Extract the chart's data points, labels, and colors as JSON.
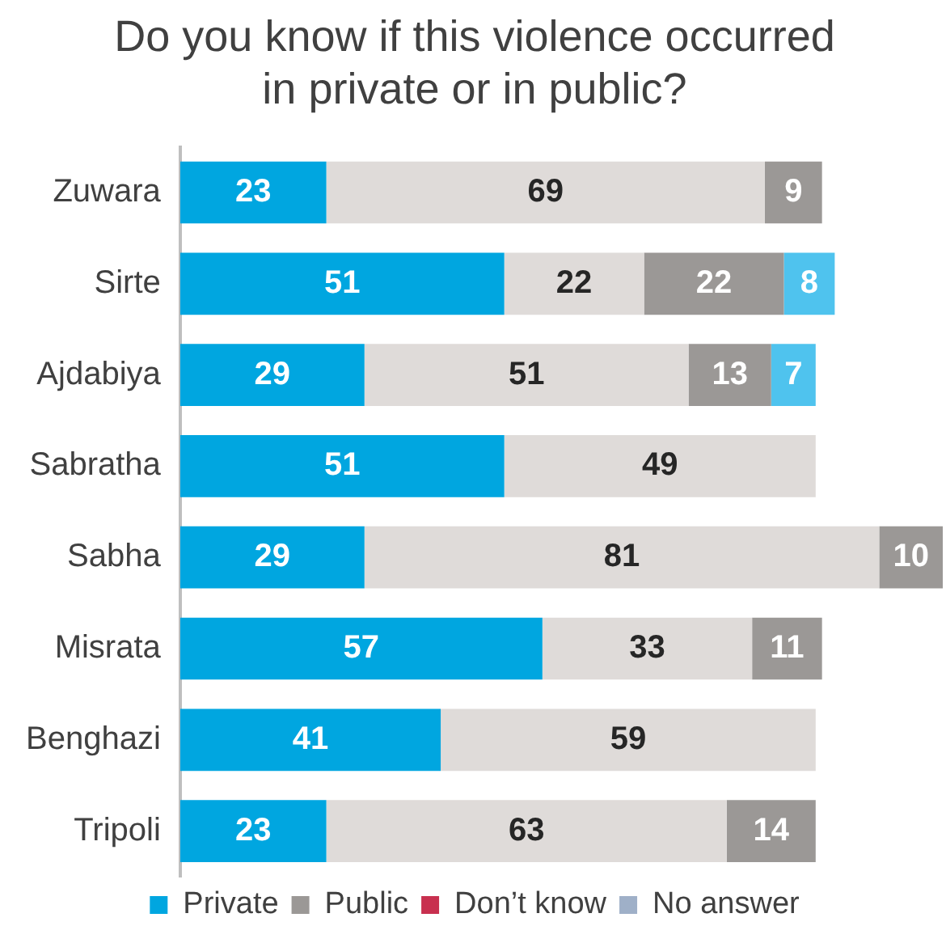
{
  "chart_data": {
    "type": "bar",
    "orientation": "horizontal",
    "stacked": true,
    "title": "Do you know if this violence occurred in private or in public?",
    "categories": [
      "Zuwara",
      "Sirte",
      "Ajdabiya",
      "Sabratha",
      "Sabha",
      "Misrata",
      "Benghazi",
      "Tripoli"
    ],
    "xlim": [
      0,
      120
    ],
    "tick_labels": "y",
    "grid": false,
    "legend": "bottom",
    "series": [
      {
        "name": "Private",
        "color": "#00a6e0",
        "values": [
          23,
          51,
          29,
          51,
          29,
          57,
          41,
          23
        ],
        "value_labels": [
          "23",
          "51",
          "29",
          "51",
          "29",
          "57",
          "41",
          "23"
        ]
      },
      {
        "color": "#dfdbd9",
        "values": [
          69,
          22,
          51,
          49,
          81,
          33,
          59,
          63
        ],
        "value_labels": [
          "69",
          "22",
          "51",
          "49",
          "81",
          "33",
          "59",
          "63"
        ]
      },
      {
        "name": "Public",
        "color": "#9b9896",
        "values": [
          9,
          22,
          13,
          null,
          10,
          11,
          null,
          14
        ],
        "value_labels": [
          "9",
          "22",
          "13",
          null,
          "10",
          "11",
          null,
          "14"
        ]
      },
      {
        "color": "#4fc3ee",
        "values": [
          null,
          8,
          7,
          null,
          null,
          null,
          null,
          null
        ],
        "value_labels": [
          null,
          "8",
          "7",
          null,
          null,
          null,
          null,
          null
        ]
      },
      {
        "name": "Don’t know",
        "color": "#c8304f",
        "values": [
          null,
          null,
          null,
          null,
          null,
          null,
          null,
          null
        ]
      },
      {
        "name": "No answer",
        "color": "#9fb0c8",
        "values": [
          null,
          null,
          null,
          null,
          null,
          null,
          null,
          null
        ]
      }
    ]
  }
}
